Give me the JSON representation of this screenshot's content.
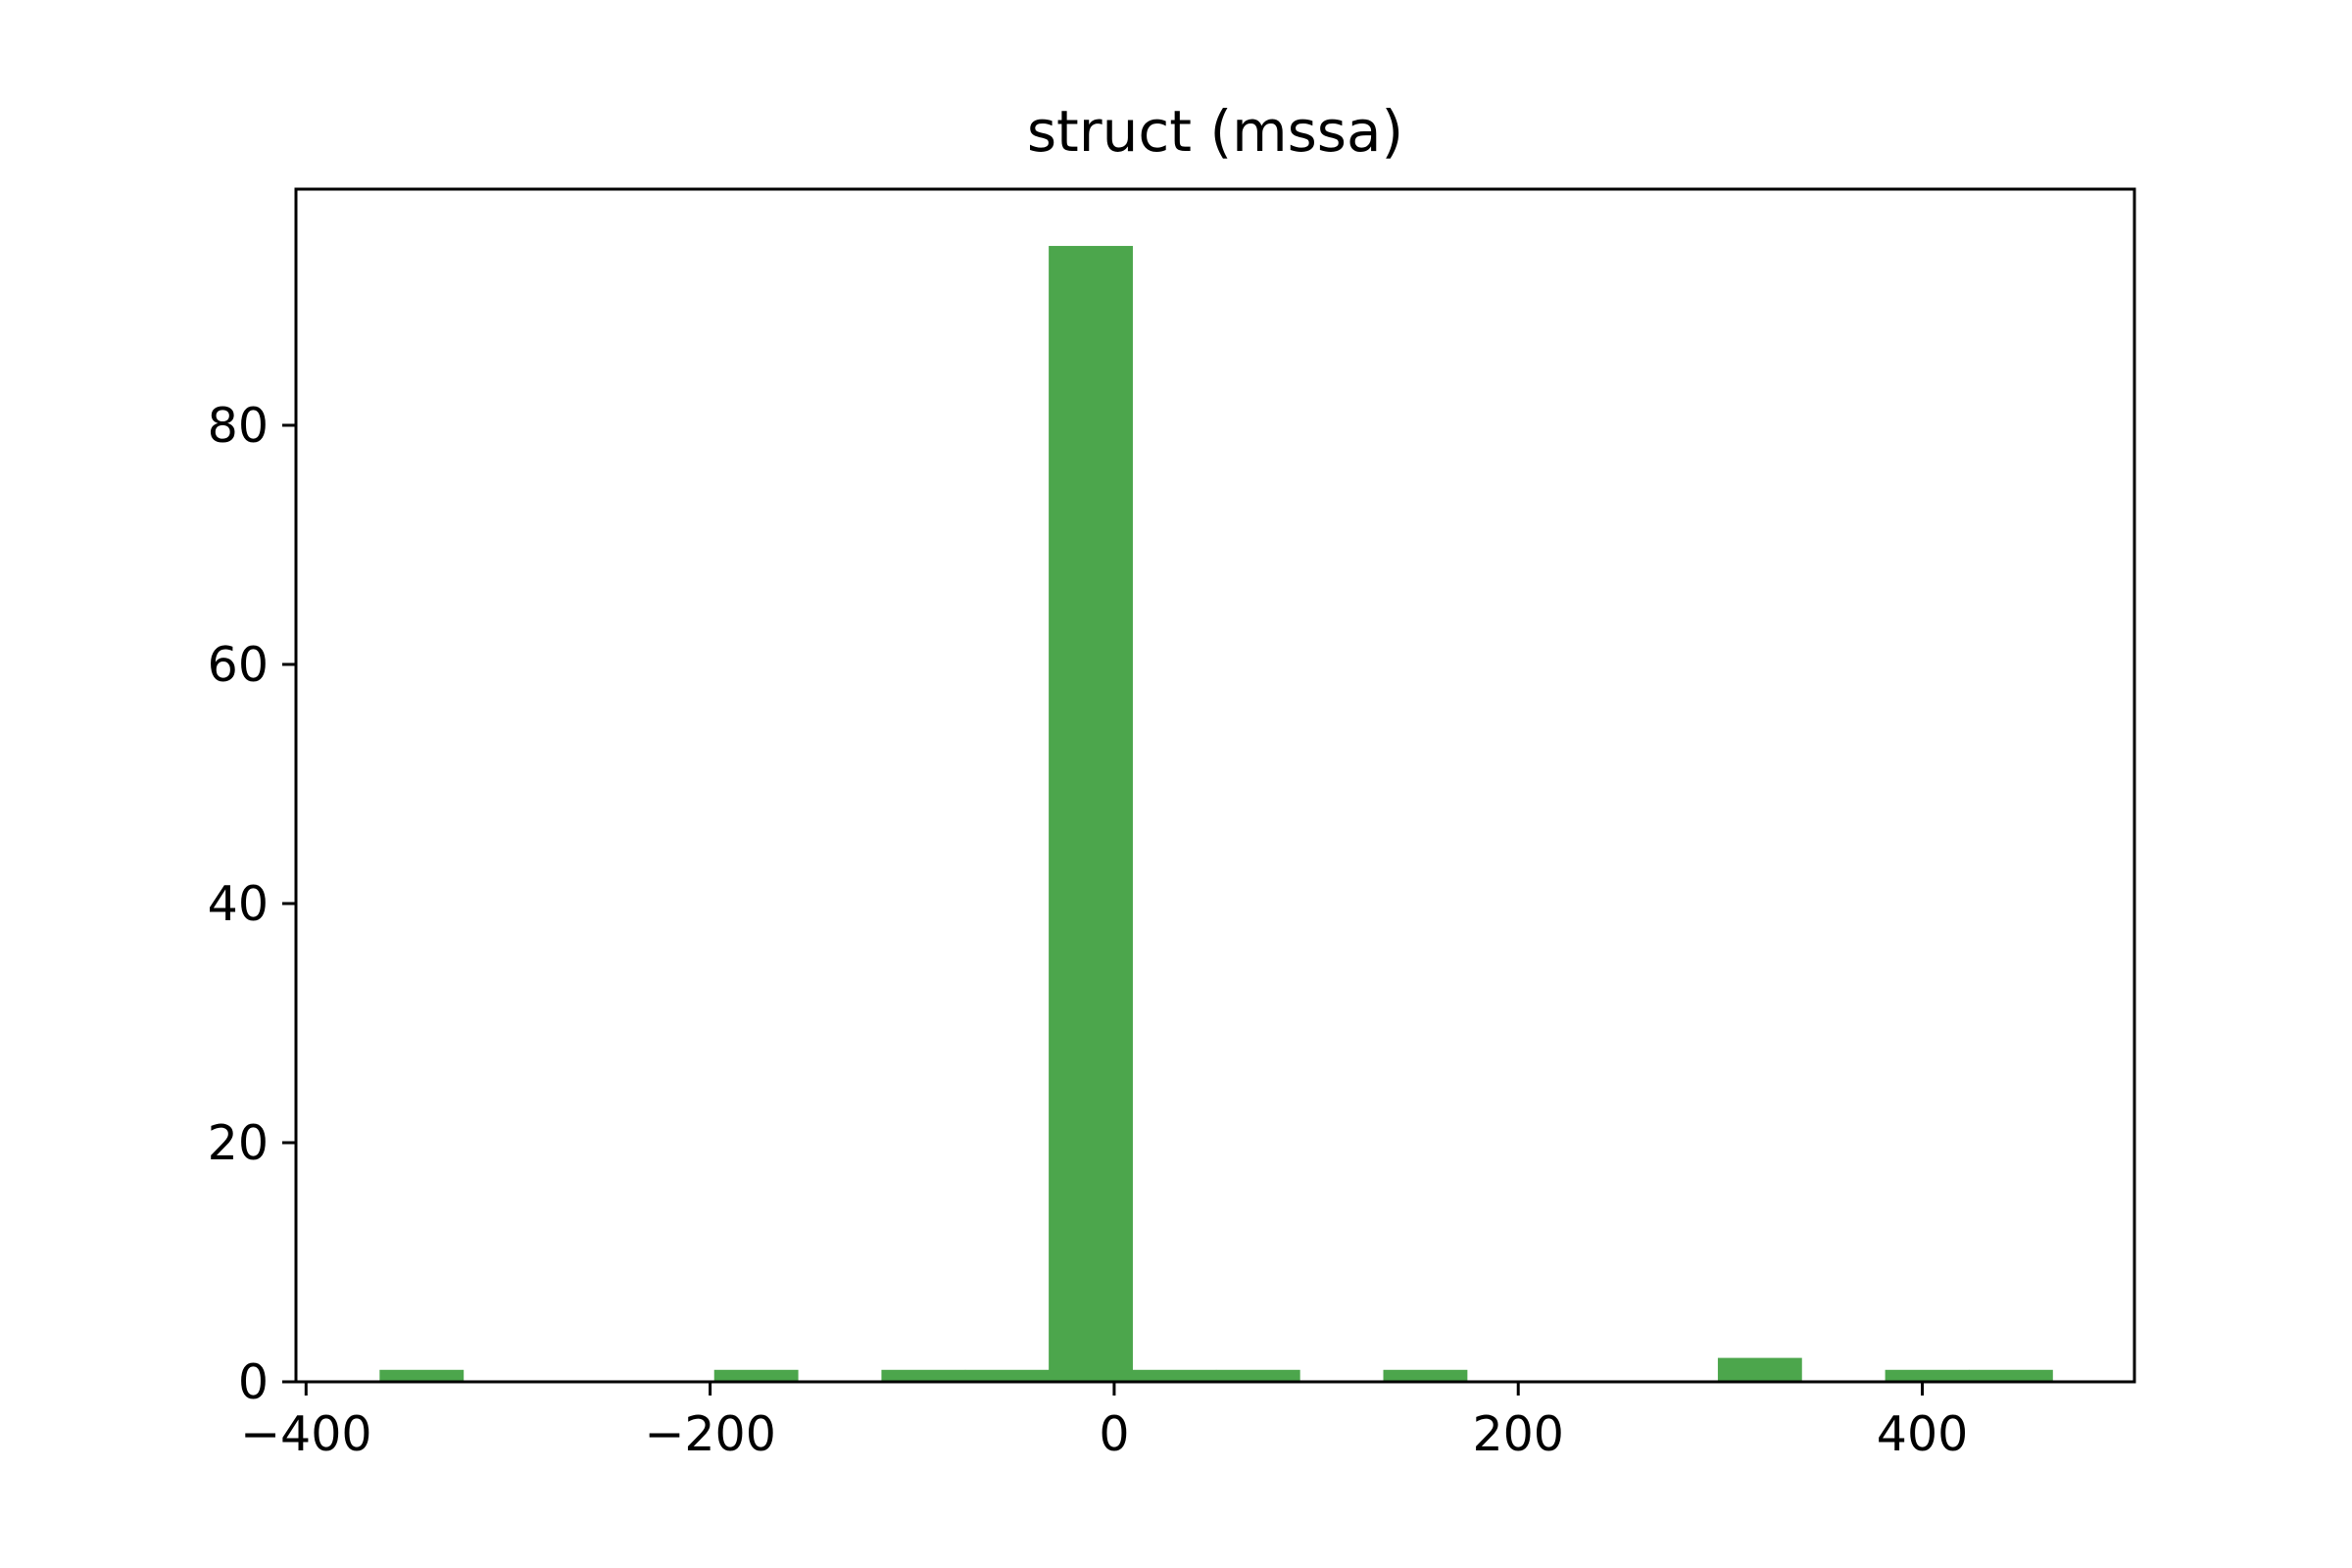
{
  "chart_data": {
    "type": "bar",
    "title": "struct (mssa)",
    "xlabel": "",
    "ylabel": "",
    "xlim": [
      -405,
      505
    ],
    "ylim": [
      0,
      99.75
    ],
    "grid": false,
    "bar_color": "#4ca64c",
    "x_ticks": [
      {
        "value": -400,
        "label": "−400"
      },
      {
        "value": -200,
        "label": "−200"
      },
      {
        "value": 0,
        "label": "0"
      },
      {
        "value": 200,
        "label": "200"
      },
      {
        "value": 400,
        "label": "400"
      }
    ],
    "y_ticks": [
      {
        "value": 0,
        "label": "0"
      },
      {
        "value": 20,
        "label": "20"
      },
      {
        "value": 40,
        "label": "40"
      },
      {
        "value": 60,
        "label": "60"
      },
      {
        "value": 80,
        "label": "80"
      }
    ],
    "bins": [
      {
        "x0": -363.6,
        "x1": -322.2,
        "count": 1
      },
      {
        "x0": -322.2,
        "x1": -280.8,
        "count": 0
      },
      {
        "x0": -280.8,
        "x1": -239.4,
        "count": 0
      },
      {
        "x0": -239.4,
        "x1": -198.0,
        "count": 0
      },
      {
        "x0": -198.0,
        "x1": -156.6,
        "count": 1
      },
      {
        "x0": -156.6,
        "x1": -115.2,
        "count": 0
      },
      {
        "x0": -115.2,
        "x1": -73.8,
        "count": 1
      },
      {
        "x0": -73.8,
        "x1": -32.4,
        "count": 1
      },
      {
        "x0": -32.4,
        "x1": 9.0,
        "count": 95
      },
      {
        "x0": 9.0,
        "x1": 50.4,
        "count": 1
      },
      {
        "x0": 50.4,
        "x1": 91.8,
        "count": 1
      },
      {
        "x0": 91.8,
        "x1": 133.2,
        "count": 0
      },
      {
        "x0": 133.2,
        "x1": 174.6,
        "count": 1
      },
      {
        "x0": 174.6,
        "x1": 216.0,
        "count": 0
      },
      {
        "x0": 216.0,
        "x1": 257.4,
        "count": 0
      },
      {
        "x0": 257.4,
        "x1": 298.8,
        "count": 0
      },
      {
        "x0": 298.8,
        "x1": 340.2,
        "count": 2
      },
      {
        "x0": 340.2,
        "x1": 381.6,
        "count": 0
      },
      {
        "x0": 381.6,
        "x1": 423.0,
        "count": 1
      },
      {
        "x0": 423.0,
        "x1": 464.4,
        "count": 1
      }
    ]
  }
}
